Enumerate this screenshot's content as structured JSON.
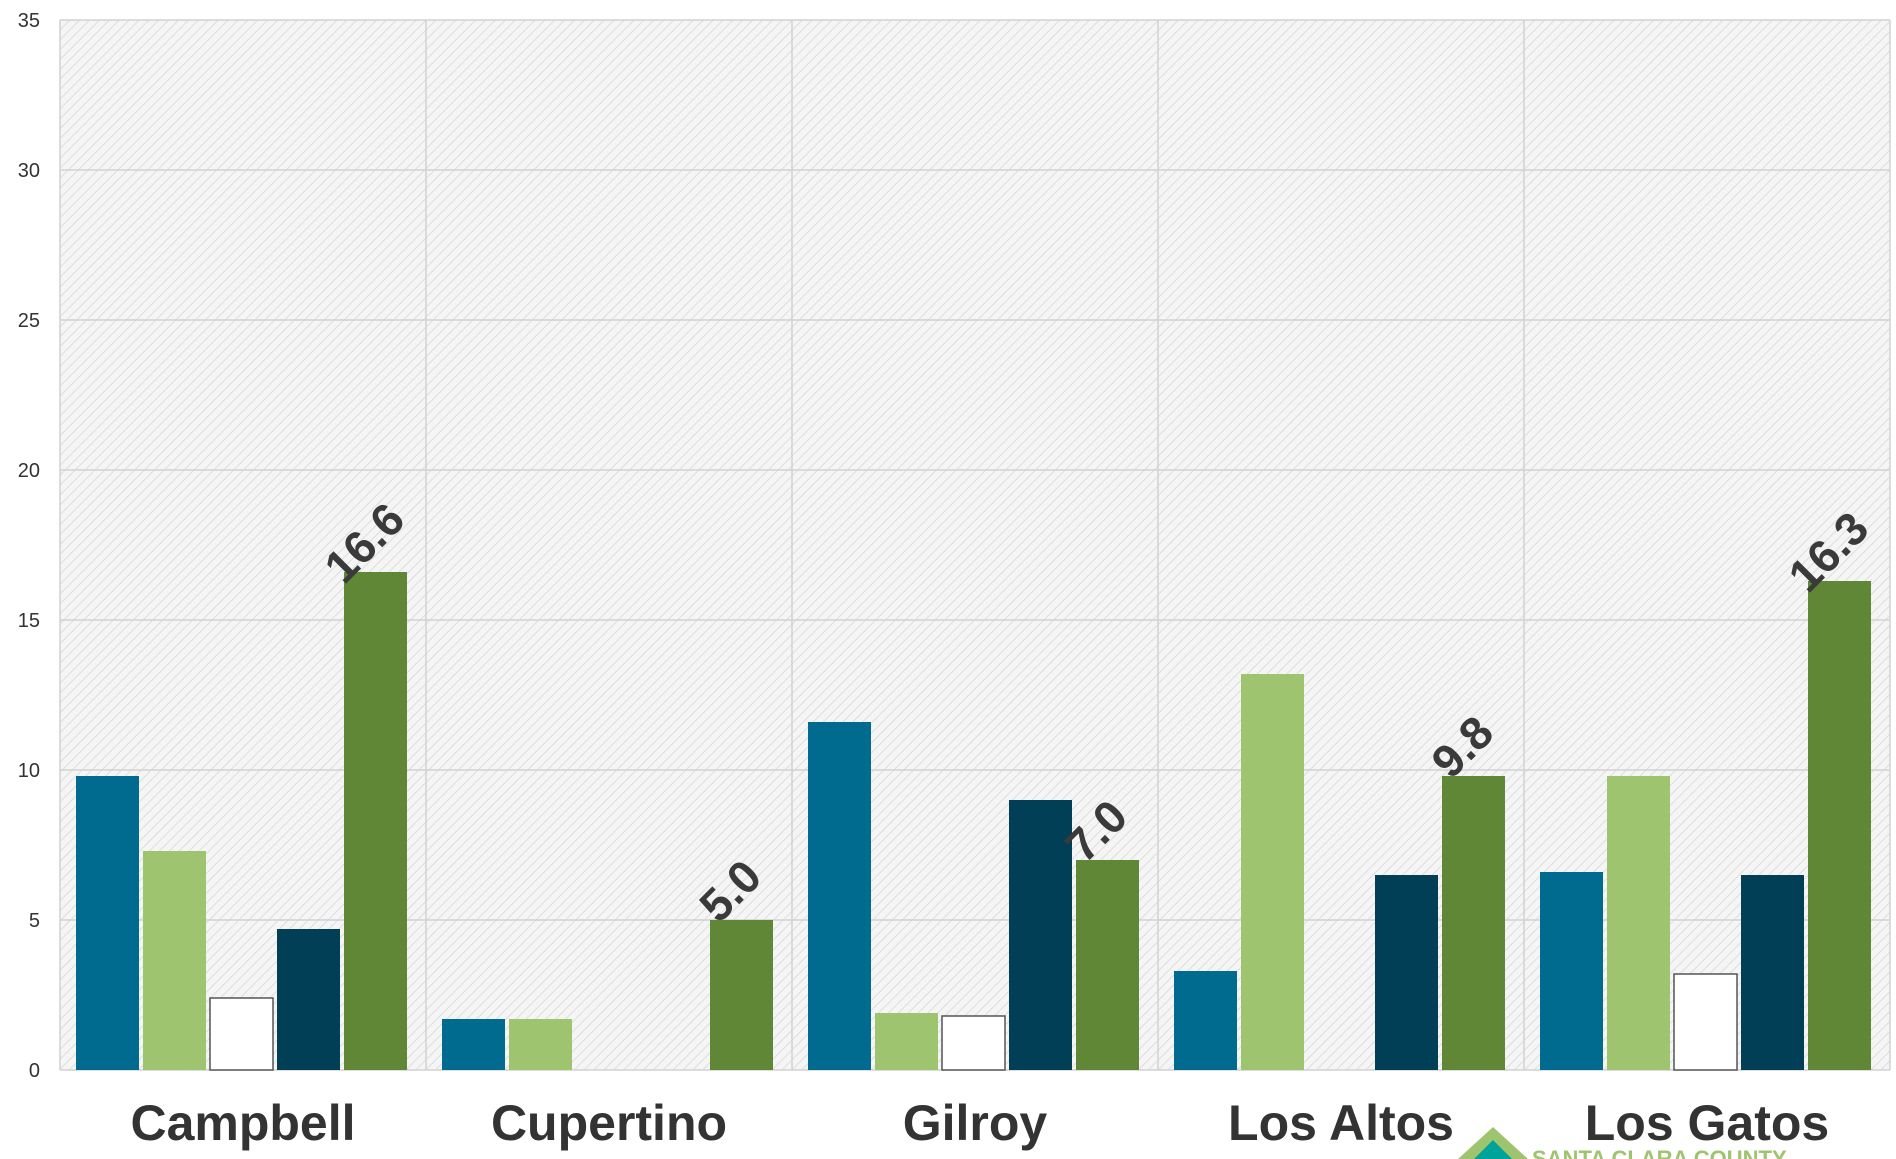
{
  "chart_data": {
    "type": "bar",
    "categories": [
      "Campbell",
      "Cupertino",
      "Gilroy",
      "Los Altos",
      "Los Gatos"
    ],
    "series": [
      {
        "color": "#006b8f",
        "values": [
          9.8,
          1.7,
          11.6,
          3.3,
          6.6
        ]
      },
      {
        "color": "#9fc46f",
        "values": [
          7.3,
          1.7,
          1.9,
          13.2,
          9.8
        ]
      },
      {
        "color": "#ffffff",
        "values": [
          2.4,
          0,
          1.8,
          0,
          3.2
        ]
      },
      {
        "color": "#003f55",
        "values": [
          4.7,
          0,
          9.0,
          6.5,
          6.5
        ]
      },
      {
        "color": "#5f8736",
        "values": [
          16.6,
          5.0,
          7.0,
          9.8,
          16.3
        ]
      }
    ],
    "data_labels": [
      "16.6",
      "5.0",
      "7.0",
      "9.8",
      "16.3"
    ],
    "y_ticks": [
      "0",
      "5",
      "10",
      "15",
      "20",
      "25",
      "30",
      "35"
    ],
    "ylim": [
      0,
      35
    ],
    "grid": true,
    "title": "",
    "xlabel": "",
    "ylabel": ""
  },
  "logo": {
    "text": "SANTA CLARA COUNTY",
    "color": "#9fc46f",
    "accent": "#00a39a"
  }
}
